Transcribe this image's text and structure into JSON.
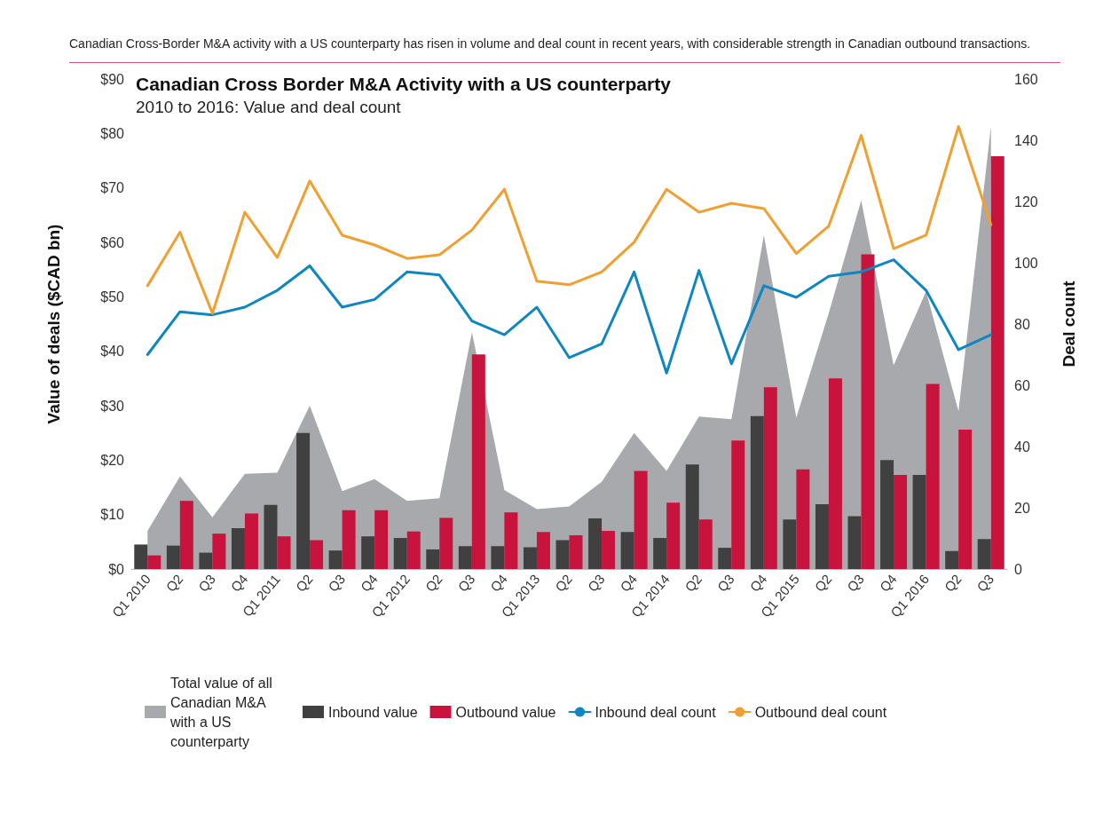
{
  "chart_data": {
    "type": "bar",
    "title": "Canadian Cross Border M&A Activity with a US counterparty",
    "subtitle": "2010 to 2016: Value and deal count",
    "ylabel": "Value of deals ($CAD bn)",
    "y2label": "Deal count",
    "annotations": [
      "Canadian Cross-Border M&A activity with a US counterparty has risen in volume and deal count in recent years, with considerable strength in Canadian outbound transactions."
    ],
    "categories": [
      "Q1 2010",
      "Q2",
      "Q3",
      "Q4",
      "Q1 2011",
      "Q2",
      "Q3",
      "Q4",
      "Q1 2012",
      "Q2",
      "Q3",
      "Q4",
      "Q1 2013",
      "Q2",
      "Q3",
      "Q4",
      "Q1 2014",
      "Q2",
      "Q3",
      "Q4",
      "Q1 2015",
      "Q2",
      "Q3",
      "Q4",
      "Q1 2016",
      "Q2",
      "Q3"
    ],
    "ylim": [
      0,
      90
    ],
    "yticks": [
      {
        "value": 0,
        "label": "$0"
      },
      {
        "value": 10,
        "label": "$10"
      },
      {
        "value": 20,
        "label": "$20"
      },
      {
        "value": 30,
        "label": "$30"
      },
      {
        "value": 40,
        "label": "$40"
      },
      {
        "value": 50,
        "label": "$50"
      },
      {
        "value": 60,
        "label": "$60"
      },
      {
        "value": 70,
        "label": "$70"
      },
      {
        "value": 80,
        "label": "$80"
      },
      {
        "value": 90,
        "label": "$90"
      }
    ],
    "y2lim": [
      0,
      160
    ],
    "y2ticks": [
      0,
      20,
      40,
      60,
      80,
      100,
      120,
      140,
      160
    ],
    "grid": false,
    "legend": "bottom",
    "marker": "none",
    "line_style": "solid",
    "series": [
      {
        "name": "Total value of all Canadian M&A with a US counterparty",
        "type": "area",
        "color": "#a7a9ac",
        "values": [
          7,
          17,
          9.5,
          17.5,
          17.7,
          30,
          14.3,
          16.5,
          12.5,
          13,
          43.5,
          14.5,
          11,
          11.5,
          16,
          25,
          18,
          28,
          27.5,
          61.3,
          27.8,
          47,
          67.7,
          37.4,
          51,
          29,
          81.3
        ]
      },
      {
        "name": "Inbound value",
        "color": "#404041",
        "values": [
          4.5,
          4.3,
          3,
          7.5,
          11.8,
          25,
          3.4,
          6,
          5.7,
          3.6,
          4.2,
          4.2,
          4,
          5.3,
          9.3,
          6.8,
          5.7,
          19.2,
          3.9,
          28.1,
          9.1,
          11.9,
          9.7,
          20,
          17.3,
          3.3,
          5.5
        ]
      },
      {
        "name": "Outbound value",
        "color": "#c8143c",
        "values": [
          2.5,
          12.5,
          6.5,
          10.2,
          6,
          5.3,
          10.8,
          10.8,
          6.9,
          9.4,
          39.4,
          10.4,
          6.8,
          6.2,
          7,
          18,
          12.2,
          9.1,
          23.6,
          33.4,
          18.3,
          35,
          57.8,
          17.3,
          34,
          25.6,
          75.8
        ]
      },
      {
        "name": "Inbound deal count",
        "type": "line",
        "axis": "y2",
        "color": "#0e86c2",
        "values": [
          70,
          84,
          83,
          85.5,
          91,
          99,
          85.5,
          88,
          97,
          96,
          81,
          76.5,
          85.5,
          69,
          73.5,
          97,
          64,
          97.5,
          67,
          92.5,
          88.7,
          95.6,
          97,
          101,
          91,
          71.6,
          76.5
        ]
      },
      {
        "name": "Outbound deal count",
        "type": "line",
        "axis": "y2",
        "color": "#f0a030",
        "values": [
          92.5,
          110,
          83.5,
          116.5,
          101.7,
          126.7,
          109,
          105.8,
          101.4,
          102.6,
          110.7,
          124,
          94,
          92.8,
          97,
          106.7,
          124,
          116.5,
          119.4,
          117.7,
          103,
          112,
          141.6,
          104.6,
          109,
          144.5,
          112.4
        ]
      }
    ]
  }
}
